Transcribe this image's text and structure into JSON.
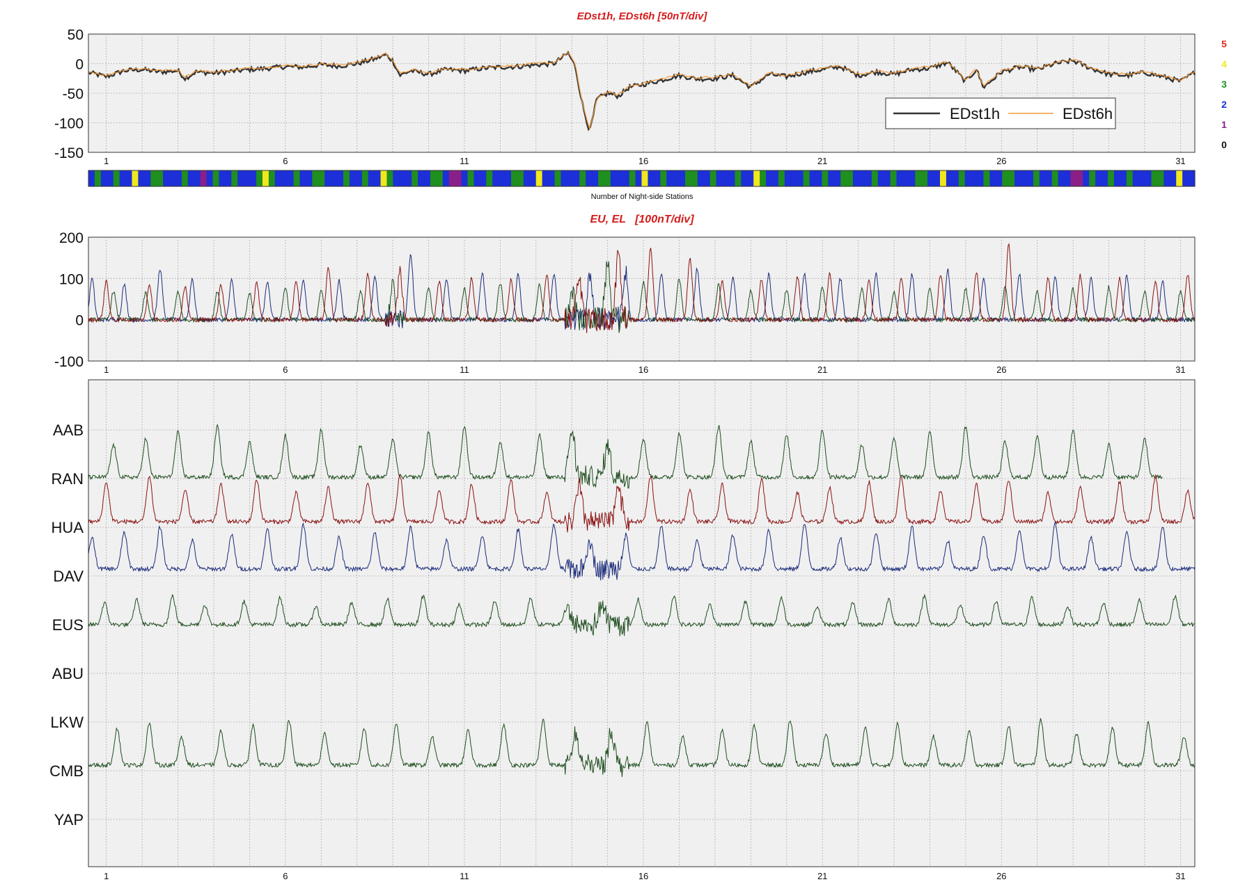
{
  "chart_data": [
    {
      "type": "line",
      "title": "EDst1h, EDst6h [50nT/div]",
      "ylim": [
        -150,
        50
      ],
      "y_ticks": [
        "50",
        "0",
        "-50",
        "-100",
        "-150"
      ],
      "x_ticks": [
        "1",
        "6",
        "11",
        "16",
        "21",
        "26",
        "31"
      ],
      "xlim": [
        0.5,
        31.4
      ],
      "grid": true,
      "legend_position": "bottom-right",
      "series": [
        {
          "name": "EDst1h",
          "color": "#333333",
          "x": [
            0.5,
            1,
            1.5,
            2,
            2.5,
            3,
            3.2,
            3.5,
            4,
            4.5,
            5,
            5.5,
            6,
            6.5,
            7,
            7.5,
            8,
            8.5,
            8.8,
            9,
            9.2,
            9.5,
            10,
            10.5,
            11,
            11.5,
            12,
            12.5,
            13,
            13.5,
            13.9,
            14.1,
            14.3,
            14.5,
            14.7,
            15,
            15.3,
            15.6,
            16,
            16.5,
            17,
            17.5,
            18,
            18.5,
            19,
            19.5,
            20,
            20.5,
            21,
            21.5,
            22,
            22.5,
            23,
            23.5,
            24,
            24.5,
            25,
            25.3,
            25.5,
            26,
            26.5,
            27,
            27.5,
            28,
            28.5,
            29,
            29.5,
            30,
            30.5,
            31,
            31.4
          ],
          "y": [
            -15,
            -22,
            -12,
            -10,
            -14,
            -12,
            -25,
            -14,
            -16,
            -13,
            -10,
            -8,
            -5,
            -6,
            -2,
            -4,
            0,
            8,
            15,
            5,
            -20,
            -12,
            -18,
            -10,
            -12,
            -8,
            -6,
            -5,
            -2,
            0,
            18,
            -5,
            -70,
            -115,
            -60,
            -50,
            -55,
            -40,
            -35,
            -28,
            -20,
            -26,
            -25,
            -20,
            -40,
            -18,
            -22,
            -15,
            -10,
            -5,
            -20,
            -14,
            -18,
            -10,
            -8,
            2,
            -30,
            -10,
            -40,
            -14,
            -6,
            -10,
            0,
            5,
            -8,
            -18,
            -20,
            -15,
            -22,
            -30,
            -15
          ]
        },
        {
          "name": "EDst6h",
          "color": "#f39a3a",
          "x": [
            0.5,
            2,
            4,
            6,
            8,
            8.8,
            9.5,
            11,
            13,
            13.9,
            14.3,
            14.6,
            15,
            16,
            18,
            20,
            22,
            24,
            26,
            28,
            30,
            31.4
          ],
          "y": [
            -16,
            -12,
            -15,
            -6,
            2,
            10,
            -14,
            -10,
            -3,
            12,
            -60,
            -95,
            -55,
            -32,
            -24,
            -22,
            -16,
            -10,
            -12,
            -2,
            -20,
            -18
          ]
        }
      ]
    },
    {
      "type": "heatmap",
      "xlabel": "Number of Night-side Stations",
      "legend": [
        "5",
        "4",
        "3",
        "2",
        "1",
        "0"
      ],
      "legend_colors": [
        "#e8241a",
        "#f0e81c",
        "#1f8f1f",
        "#1c2fd8",
        "#8a1f8a",
        "#111111"
      ],
      "counts": [
        2,
        3,
        2,
        2,
        3,
        2,
        2,
        4,
        2,
        2,
        3,
        3,
        2,
        2,
        2,
        3,
        2,
        2,
        1,
        2,
        3,
        2,
        2,
        3,
        2,
        2,
        2,
        3,
        4,
        3,
        2,
        2,
        2,
        3,
        2,
        2,
        3,
        3,
        2,
        2,
        2,
        3,
        2,
        2,
        3,
        2,
        2,
        4,
        3,
        2,
        2,
        2,
        3,
        2,
        2,
        3,
        3,
        2,
        1,
        1,
        2,
        3,
        2,
        2,
        3,
        2,
        2,
        2,
        3,
        3,
        2,
        2,
        4,
        2,
        2,
        3,
        2,
        2,
        2,
        3,
        2,
        2,
        3,
        3,
        2,
        2,
        2,
        3,
        2,
        4,
        2,
        2,
        3,
        2,
        2,
        2,
        3,
        3,
        2,
        2,
        3,
        2,
        2,
        2,
        3,
        2,
        2,
        4,
        3,
        2,
        2,
        3,
        2,
        2,
        2,
        3,
        2,
        2,
        3,
        2,
        2,
        3,
        3,
        2,
        2,
        2,
        3,
        2,
        2,
        3,
        2,
        2,
        2,
        3,
        3,
        2,
        2,
        4,
        2,
        2,
        3,
        2,
        2,
        2,
        3,
        2,
        2,
        3,
        3,
        2,
        2,
        2,
        3,
        2,
        2,
        3,
        2,
        2,
        1,
        1,
        2,
        3,
        2,
        2,
        3,
        2,
        2,
        3,
        2,
        2,
        2,
        3,
        3,
        2,
        2,
        4,
        2,
        2
      ]
    },
    {
      "type": "line",
      "title": "EU, EL   [100nT/div]",
      "ylim": [
        -100,
        200
      ],
      "y_ticks": [
        "200",
        "100",
        "0",
        "-100"
      ],
      "x_ticks": [
        "1",
        "6",
        "11",
        "16",
        "21",
        "26",
        "31"
      ],
      "xlim": [
        0.5,
        31.4
      ],
      "grid": true,
      "series": [
        {
          "color": "#1a2a7a",
          "peak_days": [
            0.6,
            1.5,
            2.5,
            3.4,
            4.5,
            5.5,
            6.5,
            7.5,
            8.5,
            9.5,
            10.5,
            11.5,
            12.5,
            13.5,
            14.5,
            15.5,
            16.5,
            17.5,
            18.5,
            19.5,
            20.5,
            21.5,
            22.5,
            23.5,
            24.5,
            25.5,
            26.5,
            27.5,
            28.5,
            29.5,
            30.5
          ],
          "peak_values": [
            100,
            85,
            125,
            100,
            95,
            95,
            100,
            95,
            105,
            160,
            100,
            115,
            110,
            110,
            120,
            110,
            110,
            125,
            100,
            110,
            110,
            100,
            110,
            110,
            120,
            100,
            110,
            105,
            100,
            105,
            95
          ]
        },
        {
          "color": "#1e4d1e",
          "peak_days": [
            1.2,
            2.1,
            3.0,
            4.1,
            5.0,
            6.0,
            7.0,
            8.1,
            9.0,
            10.0,
            11.0,
            12.0,
            13.1,
            14.0,
            15.0,
            16.0,
            17.0,
            18.1,
            19.0,
            20.0,
            21.0,
            22.1,
            23.0,
            24.0,
            25.0,
            26.1,
            27.0,
            28.0,
            29.0,
            30.0,
            31.0
          ],
          "peak_values": [
            70,
            65,
            70,
            70,
            65,
            80,
            75,
            70,
            85,
            80,
            75,
            90,
            85,
            80,
            150,
            90,
            100,
            85,
            70,
            75,
            80,
            75,
            70,
            80,
            75,
            80,
            70,
            75,
            80,
            70,
            70
          ]
        },
        {
          "color": "#8a1010",
          "peak_days": [
            1.0,
            2.2,
            3.2,
            4.2,
            5.2,
            6.3,
            7.2,
            8.3,
            9.2,
            10.3,
            11.2,
            12.3,
            13.3,
            14.2,
            15.3,
            16.2,
            17.3,
            18.2,
            19.3,
            20.3,
            21.2,
            22.3,
            23.2,
            24.3,
            25.3,
            26.2,
            27.3,
            28.2,
            29.3,
            30.3,
            31.2
          ],
          "peak_values": [
            95,
            85,
            80,
            85,
            90,
            95,
            125,
            110,
            120,
            95,
            100,
            95,
            110,
            100,
            175,
            175,
            150,
            95,
            100,
            105,
            110,
            100,
            105,
            110,
            115,
            185,
            105,
            110,
            100,
            95,
            110
          ]
        }
      ]
    },
    {
      "type": "line",
      "title": "",
      "x_ticks": [
        "1",
        "6",
        "11",
        "16",
        "21",
        "26",
        "31"
      ],
      "xlim": [
        0.5,
        31.4
      ],
      "grid": true,
      "stations": [
        "AAB",
        "RAN",
        "HUA",
        "DAV",
        "EUS",
        "ABU",
        "LKW",
        "CMB",
        "YAP"
      ],
      "series": [
        {
          "name": "AAB",
          "color": "#1e4d1e",
          "has_data": true,
          "x_end": 30.5
        },
        {
          "name": "RAN",
          "color": "#8a1010",
          "has_data": true,
          "x_end": 31.4
        },
        {
          "name": "HUA",
          "color": "#1a2a7a",
          "has_data": true,
          "x_end": 31.4
        },
        {
          "name": "DAV",
          "color": "#1e4d1e",
          "has_data": false
        },
        {
          "name": "EUS",
          "color": "#1e4d1e",
          "has_data": true,
          "x_end": 31.4
        },
        {
          "name": "ABU",
          "color": "#1e4d1e",
          "has_data": false
        },
        {
          "name": "LKW",
          "color": "#1e4d1e",
          "has_data": true,
          "x_end": 31.4
        },
        {
          "name": "CMB",
          "color": "#1e4d1e",
          "has_data": false
        },
        {
          "name": "YAP",
          "color": "#1e4d1e",
          "has_data": false
        }
      ]
    }
  ],
  "legend_panel1": [
    {
      "label": "EDst1h",
      "color": "#333333"
    },
    {
      "label": "EDst6h",
      "color": "#f39a3a"
    }
  ]
}
